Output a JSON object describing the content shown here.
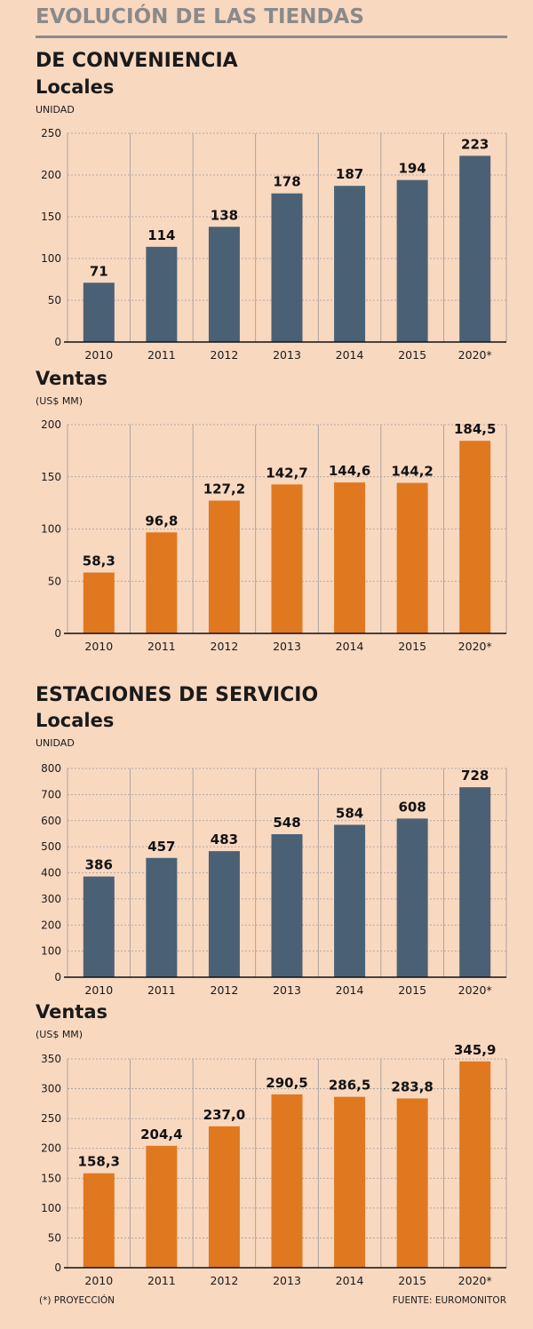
{
  "header": {
    "title": "EVOLUCIÓN DE LAS TIENDAS"
  },
  "sections": [
    {
      "title": "DE CONVENIENCIA",
      "charts": [
        {
          "title": "Locales",
          "unit": "UNIDAD"
        },
        {
          "title": "Ventas",
          "unit": "(US$ MM)"
        }
      ]
    },
    {
      "title": "ESTACIONES DE SERVICIO",
      "charts": [
        {
          "title": "Locales",
          "unit": "UNIDAD"
        },
        {
          "title": "Ventas",
          "unit": "(US$ MM)"
        }
      ]
    }
  ],
  "footer": {
    "note": "(*) PROYECCIÓN",
    "source": "FUENTE: EUROMONITOR"
  },
  "colors": {
    "background": "#f9d8c0",
    "bar_locales": "#4a6175",
    "bar_ventas": "#e07820",
    "grid_line": "#999999",
    "title_gray": "#8a8a8a"
  },
  "chart_data": [
    {
      "type": "bar",
      "title": "Locales",
      "ylabel": "UNIDAD",
      "categories": [
        "2010",
        "2011",
        "2012",
        "2013",
        "2014",
        "2015",
        "2020*"
      ],
      "values": [
        71,
        114,
        138,
        178,
        187,
        194,
        223
      ],
      "value_labels": [
        "71",
        "114",
        "138",
        "178",
        "187",
        "194",
        "223"
      ],
      "ylim": [
        0,
        250
      ],
      "yticks": [
        0,
        50,
        100,
        150,
        200,
        250
      ],
      "color": "#4a6175"
    },
    {
      "type": "bar",
      "title": "Ventas",
      "ylabel": "(US$ MM)",
      "categories": [
        "2010",
        "2011",
        "2012",
        "2013",
        "2014",
        "2015",
        "2020*"
      ],
      "values": [
        58.3,
        96.8,
        127.2,
        142.7,
        144.6,
        144.2,
        184.5
      ],
      "value_labels": [
        "58,3",
        "96,8",
        "127,2",
        "142,7",
        "144,6",
        "144,2",
        "184,5"
      ],
      "ylim": [
        0,
        200
      ],
      "yticks": [
        0,
        50,
        100,
        150,
        200
      ],
      "color": "#e07820"
    },
    {
      "type": "bar",
      "title": "Locales",
      "ylabel": "UNIDAD",
      "categories": [
        "2010",
        "2011",
        "2012",
        "2013",
        "2014",
        "2015",
        "2020*"
      ],
      "values": [
        386,
        457,
        483,
        548,
        584,
        608,
        728
      ],
      "value_labels": [
        "386",
        "457",
        "483",
        "548",
        "584",
        "608",
        "728"
      ],
      "ylim": [
        0,
        800
      ],
      "yticks": [
        0,
        100,
        200,
        300,
        400,
        500,
        600,
        700,
        800
      ],
      "color": "#4a6175"
    },
    {
      "type": "bar",
      "title": "Ventas",
      "ylabel": "(US$ MM)",
      "categories": [
        "2010",
        "2011",
        "2012",
        "2013",
        "2014",
        "2015",
        "2020*"
      ],
      "values": [
        158.3,
        204.4,
        237.0,
        290.5,
        286.5,
        283.8,
        345.9
      ],
      "value_labels": [
        "158,3",
        "204,4",
        "237,0",
        "290,5",
        "286,5",
        "283,8",
        "345,9"
      ],
      "ylim": [
        0,
        350
      ],
      "yticks": [
        0,
        50,
        100,
        150,
        200,
        250,
        300,
        350
      ],
      "color": "#e07820"
    }
  ]
}
